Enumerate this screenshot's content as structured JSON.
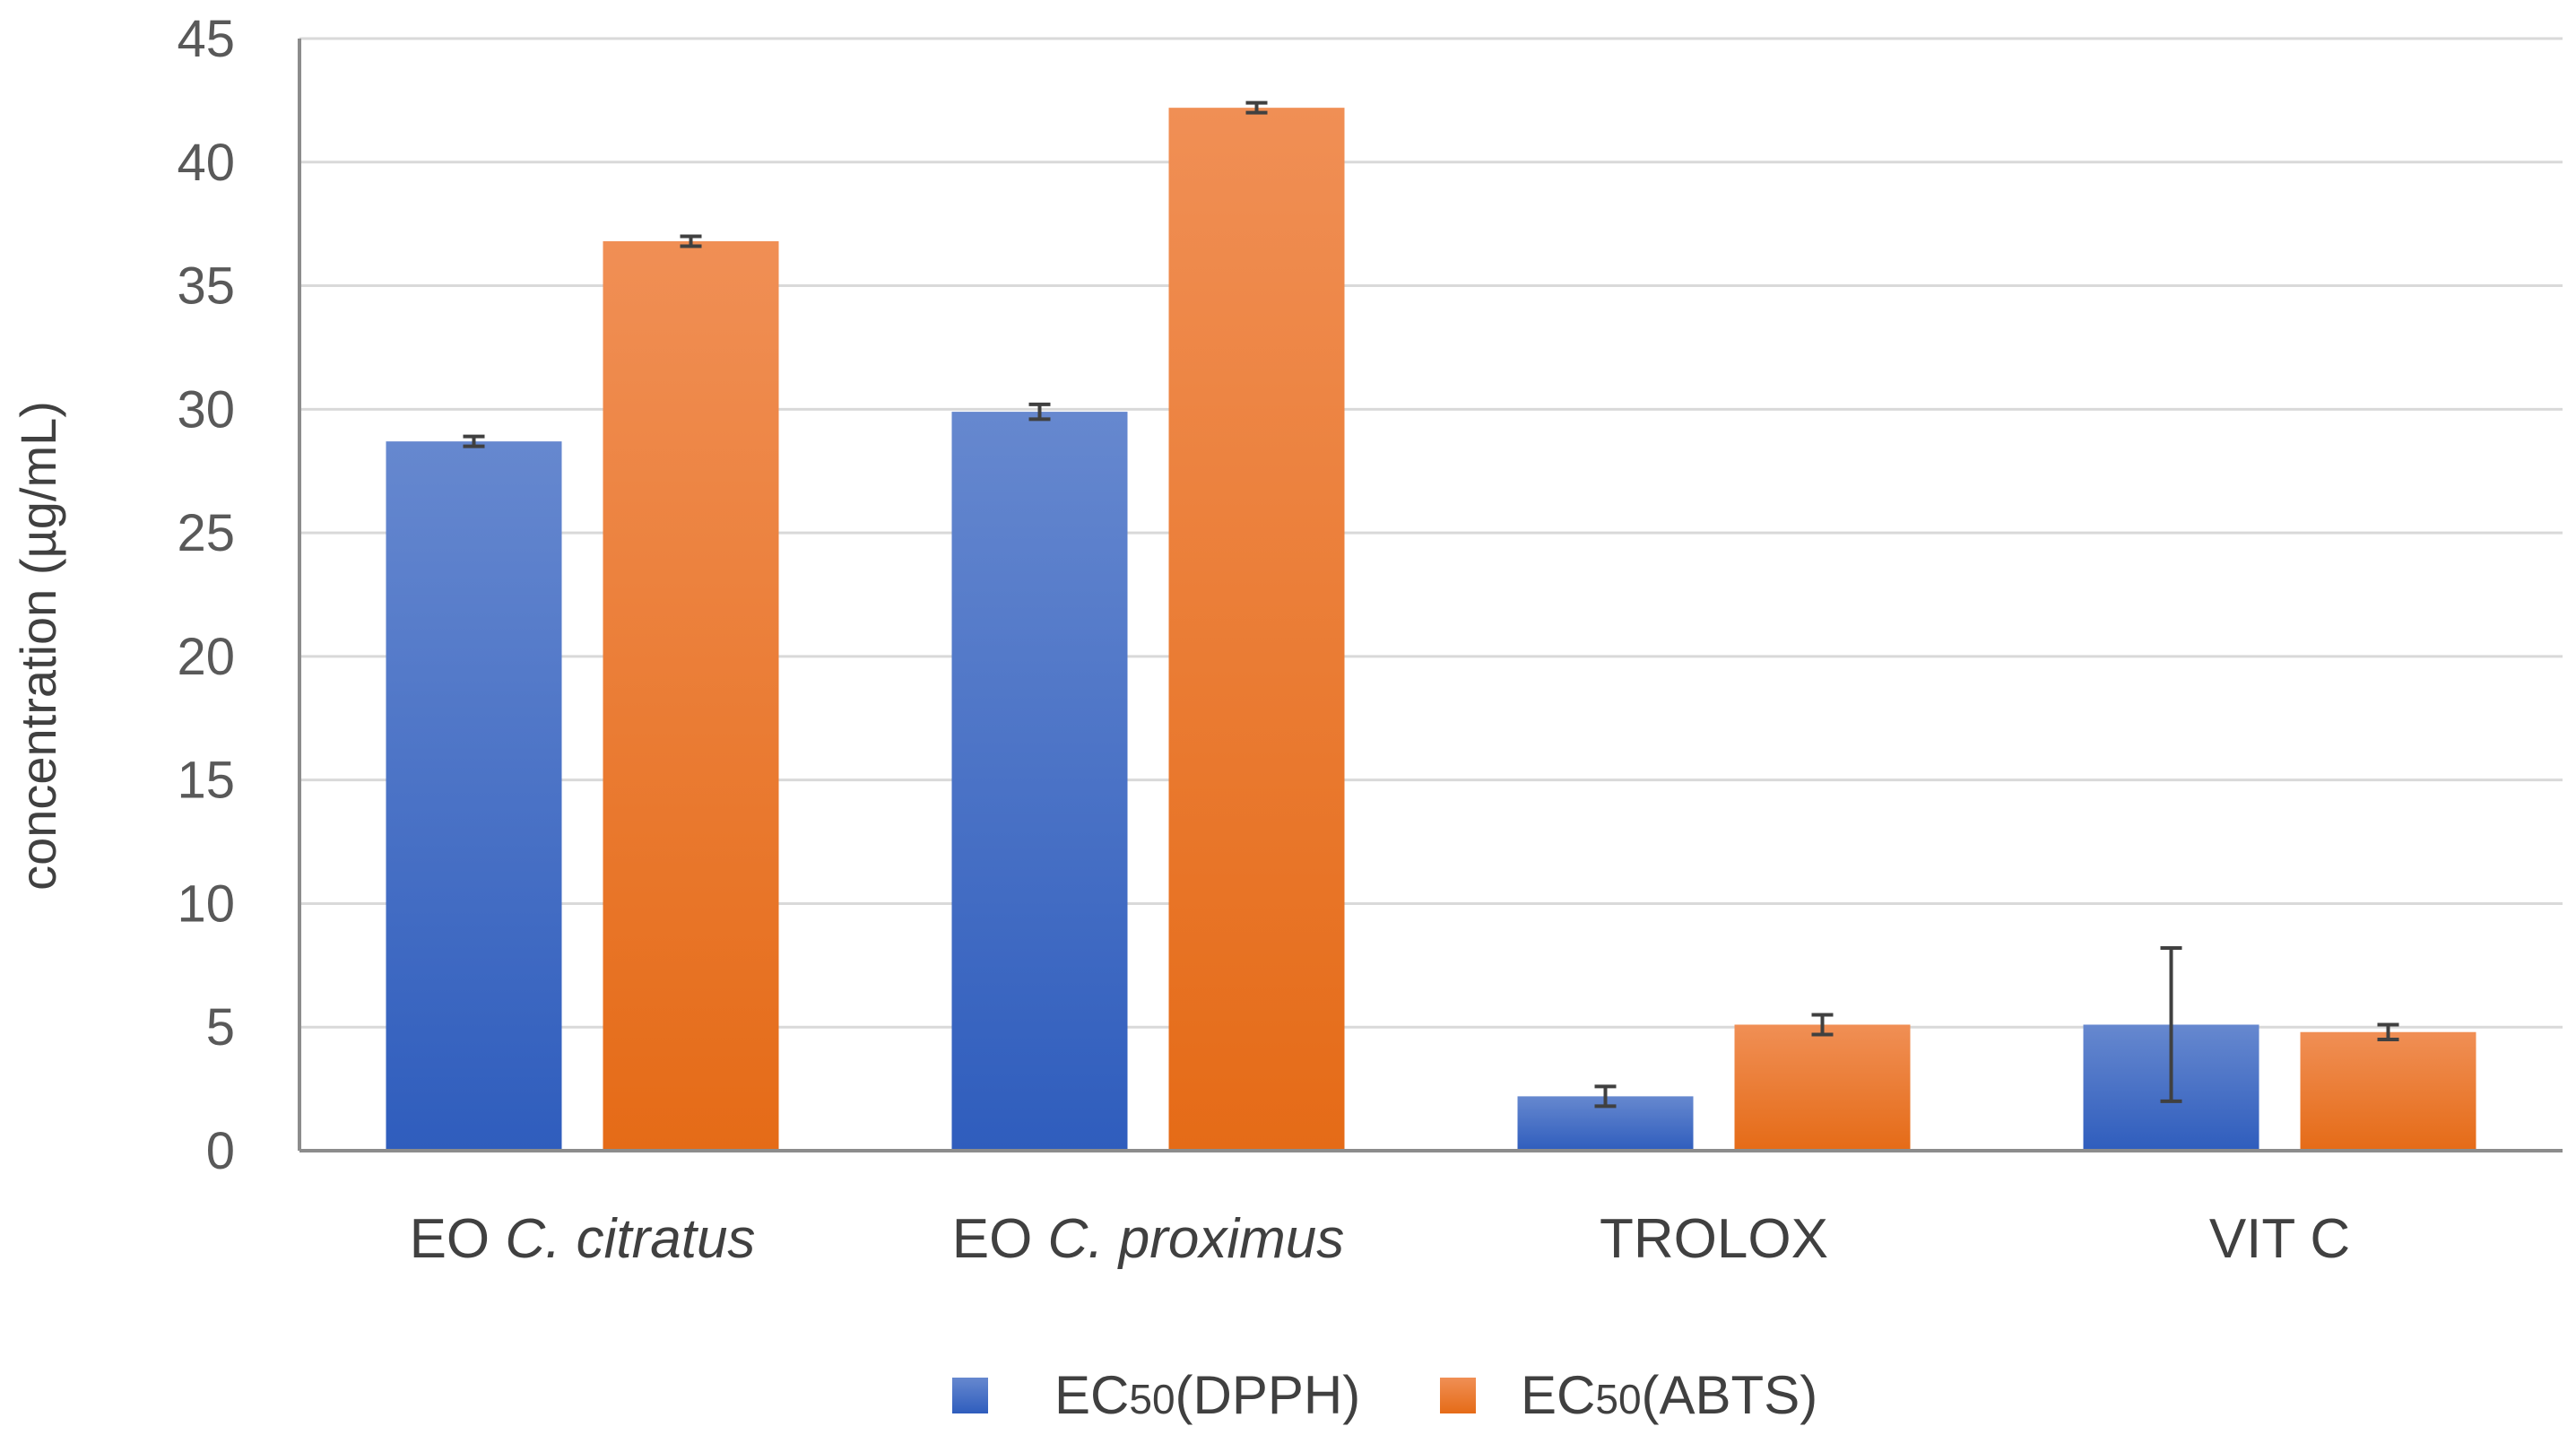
{
  "chart_data": {
    "type": "bar",
    "categories": [
      {
        "prefix": "EO ",
        "italic": "C. citratus"
      },
      {
        "prefix": "EO ",
        "italic": "C. proximus"
      },
      {
        "prefix": "TROLOX",
        "italic": ""
      },
      {
        "prefix": "VIT C",
        "italic": ""
      }
    ],
    "series": [
      {
        "name_main": "EC",
        "name_sub": "50",
        "name_rest": "(DPPH)",
        "color": "#4472c4",
        "color_top": "#6688cf",
        "color_bottom": "#2f5dbd",
        "values": [
          28.7,
          29.9,
          2.2,
          5.1
        ],
        "errors": [
          0.2,
          0.3,
          0.4,
          3.1
        ]
      },
      {
        "name_main": "EC",
        "name_sub": "50",
        "name_rest": "(ABTS)",
        "color": "#ed7d31",
        "color_top": "#f08f55",
        "color_bottom": "#e56b17",
        "values": [
          36.8,
          42.2,
          5.1,
          4.8
        ],
        "errors": [
          0.2,
          0.2,
          0.4,
          0.3
        ]
      }
    ],
    "xlabel": "",
    "ylabel": "concentration (µg/mL)",
    "ylim": [
      0,
      45
    ],
    "yticks": [
      0,
      5,
      10,
      15,
      20,
      25,
      30,
      35,
      40,
      45
    ],
    "grid": true,
    "legend_position": "bottom-center"
  }
}
